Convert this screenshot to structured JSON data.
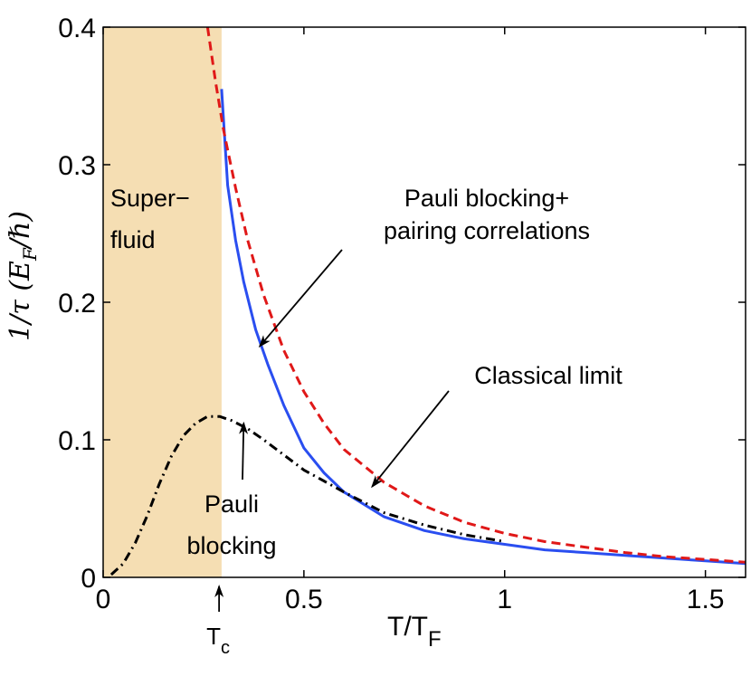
{
  "chart_data": {
    "type": "line",
    "title": "",
    "xlabel": "T/T",
    "xlabel_sub": "F",
    "ylabel": "1/τ (E",
    "ylabel_sub": "F",
    "ylabel_end": "/ℏ)",
    "xlim": [
      0,
      1.6
    ],
    "ylim": [
      0,
      0.4
    ],
    "x_ticks": [
      0,
      0.5,
      1,
      1.5
    ],
    "x_tick_labels": [
      "0",
      "0.5",
      "1",
      "1.5"
    ],
    "y_ticks": [
      0,
      0.1,
      0.2,
      0.3,
      0.4
    ],
    "y_tick_labels": [
      "0",
      "0.1",
      "0.2",
      "0.3",
      "0.4"
    ],
    "superfluid_region": {
      "x_start": 0,
      "x_end": 0.295,
      "color": "#f5deb3",
      "label_line1": "Super−",
      "label_line2": "fluid"
    },
    "tc": {
      "x": 0.3,
      "label": "T",
      "label_sub": "c"
    },
    "series": [
      {
        "name": "Pauli blocking+ pairing correlations",
        "style": "solid",
        "color": "#2a4ef0",
        "x": [
          0.295,
          0.31,
          0.33,
          0.35,
          0.38,
          0.41,
          0.45,
          0.5,
          0.55,
          0.6,
          0.7,
          0.8,
          0.9,
          1.0,
          1.1,
          1.2,
          1.3,
          1.4,
          1.5,
          1.6
        ],
        "y": [
          0.355,
          0.285,
          0.245,
          0.215,
          0.18,
          0.155,
          0.125,
          0.094,
          0.076,
          0.062,
          0.044,
          0.034,
          0.028,
          0.024,
          0.02,
          0.018,
          0.016,
          0.014,
          0.012,
          0.01
        ]
      },
      {
        "name": "Classical limit",
        "style": "dashed",
        "color": "#e01818",
        "x": [
          0.26,
          0.28,
          0.3,
          0.33,
          0.36,
          0.4,
          0.45,
          0.5,
          0.55,
          0.6,
          0.7,
          0.8,
          0.9,
          1.0,
          1.1,
          1.2,
          1.3,
          1.4,
          1.5,
          1.6
        ],
        "y": [
          0.4,
          0.36,
          0.325,
          0.283,
          0.245,
          0.205,
          0.165,
          0.135,
          0.112,
          0.093,
          0.069,
          0.052,
          0.04,
          0.032,
          0.026,
          0.022,
          0.018,
          0.015,
          0.013,
          0.011
        ]
      },
      {
        "name": "Pauli blocking",
        "style": "dashdot",
        "color": "#000000",
        "x": [
          0.02,
          0.05,
          0.08,
          0.11,
          0.14,
          0.17,
          0.2,
          0.23,
          0.26,
          0.29,
          0.32,
          0.36,
          0.4,
          0.45,
          0.5,
          0.55,
          0.6,
          0.7,
          0.8,
          0.9,
          1.0
        ],
        "y": [
          0.002,
          0.01,
          0.025,
          0.045,
          0.068,
          0.088,
          0.103,
          0.112,
          0.117,
          0.117,
          0.114,
          0.108,
          0.1,
          0.089,
          0.078,
          0.07,
          0.062,
          0.047,
          0.038,
          0.031,
          0.026
        ]
      }
    ],
    "annotations": [
      {
        "lines": [
          "Pauli blocking+",
          "pairing correlations"
        ],
        "arrow_to": [
          0.39,
          0.168
        ]
      },
      {
        "lines": [
          "Classical limit"
        ],
        "arrow_to": [
          0.67,
          0.066
        ]
      },
      {
        "lines": [
          "Pauli",
          "blocking"
        ],
        "arrow_to": [
          0.35,
          0.112
        ]
      }
    ]
  }
}
